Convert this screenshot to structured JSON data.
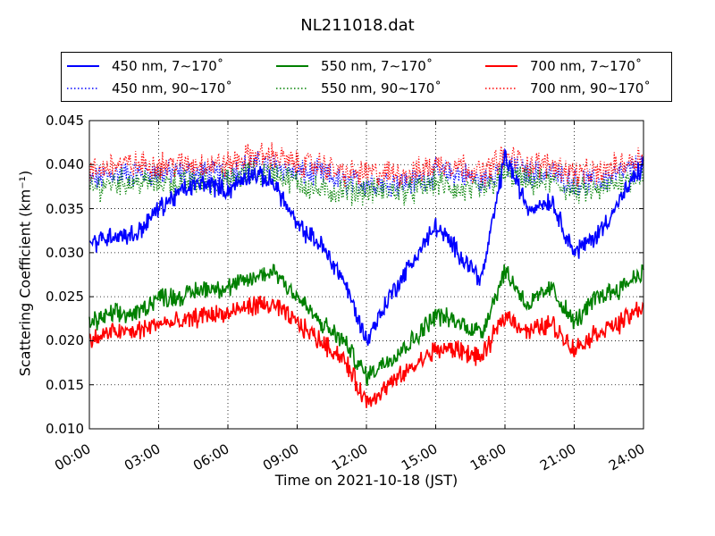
{
  "chart_data": {
    "type": "line",
    "title": "NL211018.dat",
    "xlabel": "Time on 2021-10-18 (JST)",
    "ylabel": "Scattering Coefficient (km⁻¹)",
    "xlim": [
      "00:00",
      "24:00"
    ],
    "ylim": [
      0.01,
      0.045
    ],
    "x_ticks": [
      "00:00",
      "03:00",
      "06:00",
      "09:00",
      "12:00",
      "15:00",
      "18:00",
      "21:00",
      "24:00"
    ],
    "y_ticks": [
      "0.010",
      "0.015",
      "0.020",
      "0.025",
      "0.030",
      "0.035",
      "0.040",
      "0.045"
    ],
    "grid": true,
    "legend_position": "top",
    "x": [
      "00:00",
      "01:00",
      "02:00",
      "03:00",
      "04:00",
      "05:00",
      "06:00",
      "07:00",
      "08:00",
      "09:00",
      "10:00",
      "11:00",
      "12:00",
      "13:00",
      "14:00",
      "15:00",
      "16:00",
      "17:00",
      "18:00",
      "19:00",
      "20:00",
      "21:00",
      "22:00",
      "23:00",
      "24:00"
    ],
    "series": [
      {
        "name": "450 nm, 7∼170˚",
        "color": "#0000ff",
        "style": "solid",
        "values": [
          0.031,
          0.032,
          0.032,
          0.035,
          0.037,
          0.038,
          0.037,
          0.039,
          0.038,
          0.033,
          0.031,
          0.027,
          0.02,
          0.025,
          0.029,
          0.033,
          0.03,
          0.027,
          0.041,
          0.035,
          0.036,
          0.03,
          0.032,
          0.036,
          0.04
        ]
      },
      {
        "name": "550 nm, 7∼170˚",
        "color": "#008000",
        "style": "solid",
        "values": [
          0.022,
          0.023,
          0.023,
          0.025,
          0.025,
          0.026,
          0.026,
          0.027,
          0.028,
          0.025,
          0.022,
          0.02,
          0.016,
          0.018,
          0.02,
          0.023,
          0.022,
          0.021,
          0.028,
          0.024,
          0.026,
          0.022,
          0.025,
          0.026,
          0.028
        ]
      },
      {
        "name": "700 nm, 7∼170˚",
        "color": "#ff0000",
        "style": "solid",
        "values": [
          0.02,
          0.021,
          0.021,
          0.022,
          0.022,
          0.023,
          0.023,
          0.024,
          0.024,
          0.022,
          0.02,
          0.018,
          0.013,
          0.015,
          0.017,
          0.019,
          0.019,
          0.018,
          0.023,
          0.021,
          0.022,
          0.019,
          0.021,
          0.022,
          0.024
        ]
      },
      {
        "name": "450 nm, 90∼170˚",
        "color": "#0000ff",
        "style": "dotted",
        "values": [
          0.038,
          0.039,
          0.039,
          0.039,
          0.039,
          0.039,
          0.039,
          0.04,
          0.04,
          0.039,
          0.039,
          0.038,
          0.038,
          0.038,
          0.038,
          0.039,
          0.039,
          0.038,
          0.04,
          0.039,
          0.039,
          0.038,
          0.038,
          0.039,
          0.04
        ]
      },
      {
        "name": "550 nm, 90∼170˚",
        "color": "#008000",
        "style": "dotted",
        "values": [
          0.037,
          0.038,
          0.038,
          0.038,
          0.038,
          0.038,
          0.038,
          0.039,
          0.039,
          0.038,
          0.037,
          0.037,
          0.037,
          0.037,
          0.037,
          0.038,
          0.037,
          0.037,
          0.039,
          0.038,
          0.038,
          0.037,
          0.037,
          0.038,
          0.039
        ]
      },
      {
        "name": "700 nm, 90∼170˚",
        "color": "#ff0000",
        "style": "dotted",
        "values": [
          0.039,
          0.04,
          0.04,
          0.04,
          0.04,
          0.04,
          0.04,
          0.041,
          0.041,
          0.04,
          0.04,
          0.039,
          0.039,
          0.039,
          0.039,
          0.04,
          0.04,
          0.039,
          0.041,
          0.04,
          0.04,
          0.039,
          0.039,
          0.04,
          0.041
        ]
      }
    ]
  }
}
